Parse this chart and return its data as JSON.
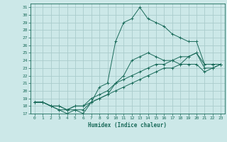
{
  "xlabel": "Humidex (Indice chaleur)",
  "bg_color": "#cce8e8",
  "grid_color": "#aacccc",
  "line_color": "#1a6b5a",
  "xlim": [
    -0.5,
    23.5
  ],
  "ylim": [
    17,
    31.5
  ],
  "xticks": [
    0,
    1,
    2,
    3,
    4,
    5,
    6,
    7,
    8,
    9,
    10,
    11,
    12,
    13,
    14,
    15,
    16,
    17,
    18,
    19,
    20,
    21,
    22,
    23
  ],
  "yticks": [
    17,
    18,
    19,
    20,
    21,
    22,
    23,
    24,
    25,
    26,
    27,
    28,
    29,
    30,
    31
  ],
  "series": [
    [
      18.5,
      18.5,
      18.0,
      17.5,
      17.5,
      17.5,
      17.5,
      18.5,
      20.5,
      21.0,
      26.5,
      29.0,
      29.5,
      31.0,
      29.5,
      29.0,
      28.5,
      27.5,
      27.0,
      26.5,
      26.5,
      23.5,
      23.5,
      23.5
    ],
    [
      18.5,
      18.5,
      18.0,
      17.5,
      17.0,
      17.5,
      17.0,
      18.5,
      19.0,
      19.5,
      21.0,
      22.0,
      24.0,
      24.5,
      25.0,
      24.5,
      24.0,
      24.0,
      23.5,
      24.5,
      25.0,
      23.5,
      23.5,
      23.5
    ],
    [
      18.5,
      18.5,
      18.0,
      18.0,
      17.5,
      18.0,
      18.0,
      19.0,
      19.5,
      20.0,
      21.0,
      21.5,
      22.0,
      22.5,
      23.0,
      23.5,
      23.5,
      24.0,
      24.5,
      24.5,
      25.0,
      23.0,
      23.0,
      23.5
    ],
    [
      18.5,
      18.5,
      18.0,
      18.0,
      17.5,
      18.0,
      18.0,
      18.5,
      19.0,
      19.5,
      20.0,
      20.5,
      21.0,
      21.5,
      22.0,
      22.5,
      23.0,
      23.0,
      23.5,
      23.5,
      23.5,
      22.5,
      23.0,
      23.5
    ]
  ]
}
